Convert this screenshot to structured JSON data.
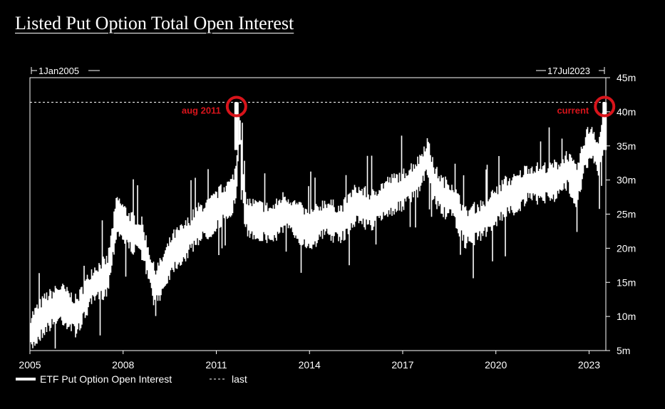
{
  "title": "Listed Put Option Total Open Interest",
  "colors": {
    "background": "#000000",
    "series": "#ffffff",
    "annotation": "#d8141b"
  },
  "chart_data": {
    "type": "line",
    "title": "Listed Put Option Total Open Interest",
    "xlabel": "",
    "ylabel": "",
    "x_range": [
      2005.0,
      2023.54
    ],
    "ylim": [
      5,
      45
    ],
    "y_axis_side": "right",
    "y_ticks": [
      "5m",
      "10m",
      "15m",
      "20m",
      "25m",
      "30m",
      "35m",
      "40m",
      "45m"
    ],
    "x_ticks": [
      "2005",
      "2008",
      "2011",
      "2014",
      "2017",
      "2020",
      "2023"
    ],
    "range_start_label": "1Jan2005",
    "range_end_label": "17Jul2023",
    "grid": false,
    "legend_position": "bottom-left",
    "series": [
      {
        "name": "ETF Put Option Open Interest",
        "style": "solid",
        "x": [
          2005.0,
          2005.5,
          2006.0,
          2006.5,
          2007.0,
          2007.5,
          2007.8,
          2008.2,
          2008.6,
          2009.0,
          2009.2,
          2009.6,
          2010.0,
          2010.4,
          2010.8,
          2011.2,
          2011.5,
          2011.65,
          2011.75,
          2011.9,
          2012.0,
          2012.4,
          2012.8,
          2013.2,
          2013.6,
          2014.0,
          2014.5,
          2015.0,
          2015.5,
          2016.0,
          2016.5,
          2017.0,
          2017.5,
          2017.8,
          2018.0,
          2018.3,
          2018.6,
          2019.0,
          2019.5,
          2020.0,
          2020.3,
          2020.7,
          2021.0,
          2021.5,
          2022.0,
          2022.3,
          2022.6,
          2022.9,
          2023.1,
          2023.3,
          2023.54
        ],
        "y": [
          7.5,
          10.5,
          12.0,
          10.0,
          14.5,
          16.0,
          25.0,
          22.5,
          21.5,
          14.5,
          15.5,
          19.5,
          21.0,
          23.5,
          24.5,
          26.5,
          27.5,
          30.0,
          38.5,
          26.5,
          24.5,
          24.0,
          23.5,
          25.5,
          24.0,
          22.5,
          24.5,
          23.5,
          26.5,
          25.5,
          27.5,
          28.5,
          30.5,
          33.5,
          29.5,
          27.5,
          27.0,
          23.0,
          24.0,
          26.0,
          27.5,
          28.0,
          29.5,
          29.5,
          30.0,
          31.5,
          29.0,
          34.5,
          35.5,
          33.0,
          39.5
        ]
      },
      {
        "name": "last",
        "style": "dashed",
        "value": 41.4
      }
    ],
    "annotations": [
      {
        "label": "aug 2011",
        "x": 2011.65,
        "y": 41.4,
        "marker": "red-circle"
      },
      {
        "label": "current",
        "x": 2023.5,
        "y": 41.4,
        "marker": "red-circle"
      }
    ]
  }
}
